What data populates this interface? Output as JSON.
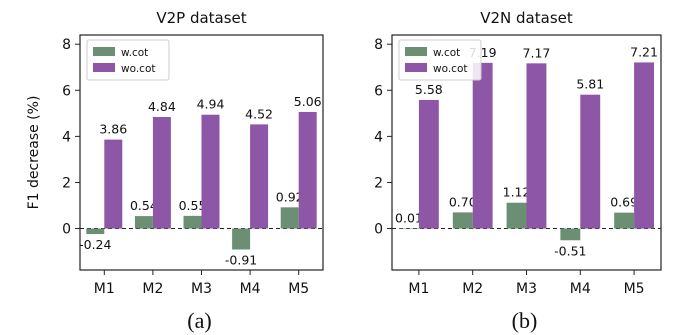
{
  "colors": {
    "w_cot": "#6a8f72",
    "wo_cot": "#8e56a6"
  },
  "chart_data": [
    {
      "type": "bar",
      "title": "V2P dataset",
      "caption": "(a)",
      "ylabel": "F1 decrease (%)",
      "categories": [
        "M1",
        "M2",
        "M3",
        "M4",
        "M5"
      ],
      "ylim": [
        -1.8,
        8.4
      ],
      "yticks": [
        0,
        2,
        4,
        6,
        8
      ],
      "legend": "top-left",
      "series": [
        {
          "name": "w.cot",
          "values": [
            -0.24,
            0.54,
            0.55,
            -0.91,
            0.92
          ],
          "labels": [
            "-0.24",
            "0.54",
            "0.55",
            "-0.91",
            "0.92"
          ]
        },
        {
          "name": "wo.cot",
          "values": [
            3.86,
            4.84,
            4.94,
            4.52,
            5.06
          ],
          "labels": [
            "3.86",
            "4.84",
            "4.94",
            "4.52",
            "5.06"
          ]
        }
      ]
    },
    {
      "type": "bar",
      "title": "V2N dataset",
      "caption": "(b)",
      "ylabel": "",
      "categories": [
        "M1",
        "M2",
        "M3",
        "M4",
        "M5"
      ],
      "ylim": [
        -1.8,
        8.4
      ],
      "yticks": [
        0,
        2,
        4,
        6,
        8
      ],
      "legend": "top-left",
      "series": [
        {
          "name": "w.cot",
          "values": [
            0.01,
            0.7,
            1.12,
            -0.51,
            0.69
          ],
          "labels": [
            "0.01",
            "0.70",
            "1.12",
            "-0.51",
            "0.69"
          ]
        },
        {
          "name": "wo.cot",
          "values": [
            5.58,
            7.19,
            7.17,
            5.81,
            7.21
          ],
          "labels": [
            "5.58",
            "7.19",
            "7.17",
            "5.81",
            "7.21"
          ]
        }
      ]
    }
  ]
}
